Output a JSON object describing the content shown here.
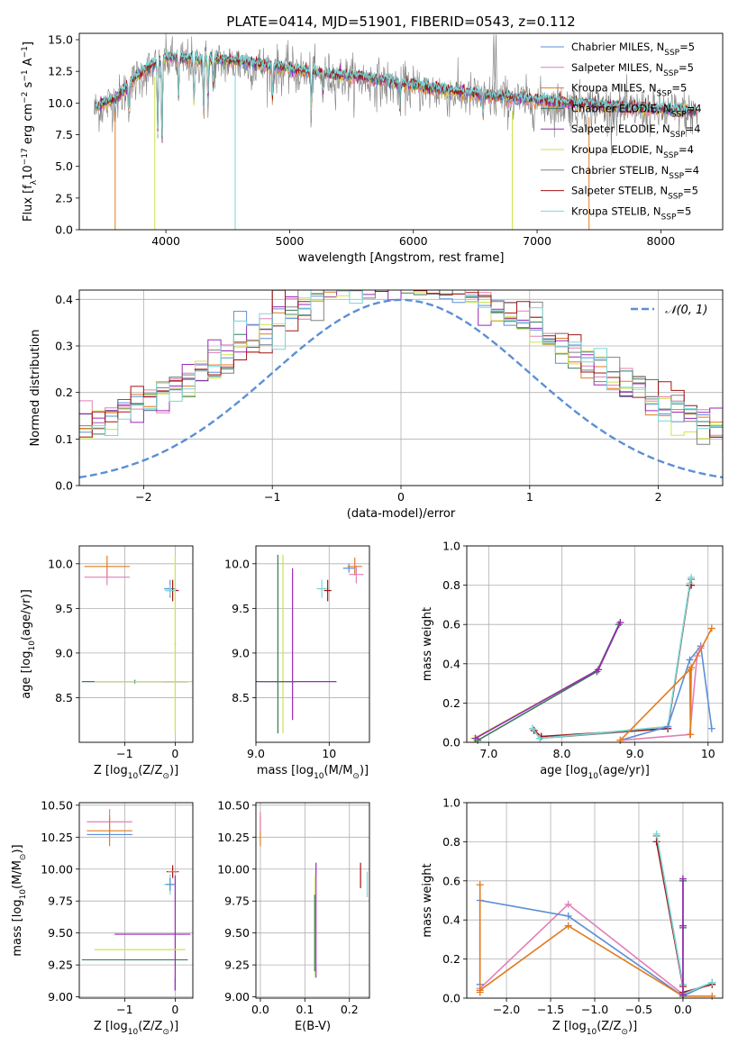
{
  "figure_title": "PLATE=0414, MJD=51901, FIBERID=0543, z=0.112",
  "colors": {
    "chabrier_miles": "#5b8fd6",
    "salpeter_miles": "#e37fb8",
    "kroupa_miles": "#e07b1f",
    "chabrier_elodie": "#3a7a5a",
    "salpeter_elodie": "#9a28b8",
    "kroupa_elodie": "#cfe24a",
    "chabrier_stelib": "#808080",
    "salpeter_stelib": "#a31414",
    "kroupa_stelib": "#78d7d7",
    "normal_curve": "#5b8fd6",
    "grid": "#b0b0b0"
  },
  "chart_data": [
    {
      "id": "spectrum",
      "type": "line",
      "xlabel": "wavelength [Angstrom, rest frame]",
      "ylabel_parts": [
        "Flux [f",
        "λ",
        "10",
        "−17",
        " erg cm",
        "−2",
        " s",
        "−1",
        " A",
        "−1",
        "]"
      ],
      "xlim": [
        3300,
        8500
      ],
      "ylim": [
        0,
        15.5
      ],
      "xticks": [
        4000,
        5000,
        6000,
        7000,
        8000
      ],
      "yticks": [
        0.0,
        2.5,
        5.0,
        7.5,
        10.0,
        12.5,
        15.0
      ],
      "grid": false,
      "legend_placement": "top-right",
      "legend": [
        {
          "label": "Chabrier MILES, N",
          "sub": "SSP",
          "tail": "=5",
          "color_key": "chabrier_miles"
        },
        {
          "label": "Salpeter MILES, N",
          "sub": "SSP",
          "tail": "=5",
          "color_key": "salpeter_miles"
        },
        {
          "label": "Kroupa MILES, N",
          "sub": "SSP",
          "tail": "=5",
          "color_key": "kroupa_miles"
        },
        {
          "label": "Chabrier ELODIE, N",
          "sub": "SSP",
          "tail": "=4",
          "color_key": "chabrier_elodie"
        },
        {
          "label": "Salpeter ELODIE, N",
          "sub": "SSP",
          "tail": "=4",
          "color_key": "salpeter_elodie"
        },
        {
          "label": "Kroupa ELODIE, N",
          "sub": "SSP",
          "tail": "=4",
          "color_key": "kroupa_elodie"
        },
        {
          "label": "Chabrier STELIB, N",
          "sub": "SSP",
          "tail": "=4",
          "color_key": "chabrier_stelib"
        },
        {
          "label": "Salpeter STELIB, N",
          "sub": "SSP",
          "tail": "=5",
          "color_key": "salpeter_stelib"
        },
        {
          "label": "Kroupa STELIB, N",
          "sub": "SSP",
          "tail": "=5",
          "color_key": "kroupa_stelib"
        }
      ],
      "continuum": {
        "x": [
          3420,
          3600,
          3800,
          4000,
          4200,
          4400,
          4600,
          4800,
          5000,
          5200,
          5400,
          5600,
          5800,
          6000,
          6200,
          6400,
          6600,
          6800,
          7000,
          7200,
          7400,
          7600,
          7800,
          8000,
          8200,
          8300
        ],
        "y": [
          9.6,
          10.4,
          12.4,
          13.6,
          13.5,
          13.4,
          13.3,
          13.0,
          12.7,
          12.4,
          12.2,
          12.0,
          11.7,
          11.4,
          11.1,
          10.8,
          10.6,
          10.4,
          10.2,
          10.0,
          9.9,
          9.7,
          9.6,
          9.5,
          9.4,
          9.3
        ]
      },
      "absorption_lines": [
        {
          "x": 3700,
          "depth": 1.8
        },
        {
          "x": 3934,
          "depth": 5.5
        },
        {
          "x": 3969,
          "depth": 6.5
        },
        {
          "x": 4102,
          "depth": 3.0
        },
        {
          "x": 4227,
          "depth": 3.5
        },
        {
          "x": 4305,
          "depth": 4.0
        },
        {
          "x": 4340,
          "depth": 3.0
        },
        {
          "x": 4383,
          "depth": 2.0
        },
        {
          "x": 4861,
          "depth": 2.5
        },
        {
          "x": 5175,
          "depth": 3.0
        },
        {
          "x": 5270,
          "depth": 1.5
        },
        {
          "x": 5890,
          "depth": 2.0
        },
        {
          "x": 6563,
          "depth": 1.5
        }
      ],
      "drop_lines": [
        {
          "x": 3590,
          "color_key": "kroupa_miles"
        },
        {
          "x": 3910,
          "color_key": "kroupa_elodie"
        },
        {
          "x": 4560,
          "color_key": "kroupa_stelib"
        },
        {
          "x": 6800,
          "color_key": "kroupa_elodie"
        },
        {
          "x": 7420,
          "color_key": "kroupa_miles"
        }
      ]
    },
    {
      "id": "residuals",
      "type": "step",
      "xlabel": "(data-model)/error",
      "ylabel": "Normed distribution",
      "xlim": [
        -2.5,
        2.5
      ],
      "ylim": [
        0,
        0.42
      ],
      "xticks": [
        -2,
        -1,
        0,
        1,
        2
      ],
      "xtick_labels": [
        "−2",
        "−1",
        "0",
        "1",
        "2"
      ],
      "yticks": [
        0.0,
        0.1,
        0.2,
        0.3,
        0.4
      ],
      "grid": true,
      "bin_width": 0.1,
      "legend_placement": "top-right",
      "legend_label": "𝒩(0, 1)",
      "normal": {
        "mu": 0,
        "sigma": 1
      }
    },
    {
      "id": "age-vs-Z",
      "type": "errorbar",
      "xlabel_parts": [
        "Z [log",
        "10",
        "(Z/Z",
        "⊙",
        ")]"
      ],
      "ylabel_parts": [
        "age  [log",
        "10",
        "(age/yr)]"
      ],
      "xlim": [
        -1.9,
        0.35
      ],
      "ylim": [
        8.0,
        10.2
      ],
      "xticks": [
        -1,
        0
      ],
      "xtick_labels": [
        "−1",
        "0"
      ],
      "yticks": [
        8.5,
        9.0,
        9.5,
        10.0
      ],
      "grid": true,
      "points": [
        {
          "x": -1.35,
          "y": 9.97,
          "xerr": 0.45,
          "yerr": 0.12,
          "color_key": "kroupa_miles"
        },
        {
          "x": -1.35,
          "y": 9.85,
          "xerr": 0.45,
          "yerr": 0.09,
          "color_key": "salpeter_miles"
        },
        {
          "x": -0.1,
          "y": 9.72,
          "xerr": 0.12,
          "yerr": 0.1,
          "color_key": "chabrier_miles"
        },
        {
          "x": -0.05,
          "y": 9.7,
          "xerr": 0.12,
          "yerr": 0.12,
          "color_key": "salpeter_stelib"
        },
        {
          "x": -0.1,
          "y": 9.7,
          "xerr": 0.1,
          "yerr": 0.06,
          "color_key": "kroupa_stelib"
        },
        {
          "x": -0.8,
          "y": 8.68,
          "xerr": 1.05,
          "yerr": 0.02,
          "color_key": "chabrier_elodie"
        },
        {
          "x": 0.0,
          "y": 8.68,
          "xerr": 0.25,
          "yerr": 0.0,
          "color_key": "salpeter_elodie"
        },
        {
          "x": 0.0,
          "y": 9.1,
          "xerr": 0.02,
          "yerr": 1.0,
          "color_key": "kroupa_elodie"
        },
        {
          "x": -0.6,
          "y": 8.68,
          "xerr": 1.0,
          "yerr": 0.0,
          "color_key": "kroupa_elodie"
        }
      ]
    },
    {
      "id": "age-vs-mass",
      "type": "errorbar",
      "xlabel_parts": [
        "mass [log",
        "10",
        "(M/M",
        "⊙",
        ")]"
      ],
      "xlim": [
        9.0,
        10.55
      ],
      "ylim": [
        8.0,
        10.2
      ],
      "xticks": [
        9,
        10
      ],
      "yticks": [
        8.5,
        9.0,
        9.5,
        10.0
      ],
      "grid": true,
      "points": [
        {
          "x": 9.3,
          "y": 9.1,
          "xerr": 0.0,
          "yerr": 1.0,
          "color_key": "chabrier_elodie"
        },
        {
          "x": 9.37,
          "y": 9.1,
          "xerr": 0.0,
          "yerr": 1.0,
          "color_key": "kroupa_elodie"
        },
        {
          "x": 9.5,
          "y": 9.1,
          "xerr": 0.0,
          "yerr": 0.85,
          "color_key": "salpeter_elodie"
        },
        {
          "x": 9.5,
          "y": 8.68,
          "xerr": 0.6,
          "yerr": 0.0,
          "color_key": "salpeter_elodie"
        },
        {
          "x": 9.3,
          "y": 8.68,
          "xerr": 0.25,
          "yerr": 0.0,
          "color_key": "chabrier_elodie"
        },
        {
          "x": 9.98,
          "y": 9.7,
          "xerr": 0.05,
          "yerr": 0.12,
          "color_key": "salpeter_stelib"
        },
        {
          "x": 9.9,
          "y": 9.72,
          "xerr": 0.07,
          "yerr": 0.1,
          "color_key": "kroupa_stelib"
        },
        {
          "x": 10.35,
          "y": 9.97,
          "xerr": 0.1,
          "yerr": 0.1,
          "color_key": "kroupa_miles"
        },
        {
          "x": 10.37,
          "y": 9.88,
          "xerr": 0.1,
          "yerr": 0.1,
          "color_key": "salpeter_miles"
        },
        {
          "x": 10.27,
          "y": 9.95,
          "xerr": 0.08,
          "yerr": 0.05,
          "color_key": "chabrier_miles"
        }
      ]
    },
    {
      "id": "weight-vs-age",
      "type": "line",
      "xlabel_parts": [
        "age  [log",
        "10",
        "(age/yr)]"
      ],
      "ylabel": "mass weight",
      "xlim": [
        6.7,
        10.2
      ],
      "ylim": [
        0,
        1.0
      ],
      "xticks": [
        7,
        8,
        9,
        10
      ],
      "yticks": [
        0.0,
        0.2,
        0.4,
        0.6,
        0.8,
        1.0
      ],
      "grid": true,
      "series": [
        {
          "color_key": "kroupa_elodie",
          "x": [
            6.8,
            8.5,
            8.8
          ],
          "y": [
            0.02,
            0.37,
            0.61
          ]
        },
        {
          "color_key": "chabrier_elodie",
          "x": [
            6.85,
            8.48,
            8.78
          ],
          "y": [
            0.01,
            0.36,
            0.6
          ]
        },
        {
          "color_key": "salpeter_elodie",
          "x": [
            6.82,
            8.5,
            8.8
          ],
          "y": [
            0.02,
            0.37,
            0.61
          ]
        },
        {
          "color_key": "chabrier_stelib",
          "x": [
            7.6,
            7.7,
            9.45,
            9.75,
            9.77
          ],
          "y": [
            0.07,
            0.02,
            0.07,
            0.8,
            0.83
          ]
        },
        {
          "color_key": "salpeter_stelib",
          "x": [
            7.62,
            7.72,
            9.45,
            9.75,
            9.77
          ],
          "y": [
            0.06,
            0.03,
            0.07,
            0.8,
            0.8
          ]
        },
        {
          "color_key": "kroupa_stelib",
          "x": [
            7.6,
            7.7,
            9.45,
            9.75,
            9.77
          ],
          "y": [
            0.07,
            0.02,
            0.08,
            0.81,
            0.84
          ]
        },
        {
          "color_key": "chabrier_miles",
          "x": [
            8.8,
            9.45,
            9.75,
            9.9,
            10.05
          ],
          "y": [
            0.01,
            0.08,
            0.42,
            0.49,
            0.07
          ]
        },
        {
          "color_key": "salpeter_miles",
          "x": [
            8.8,
            9.75,
            9.85,
            9.9
          ],
          "y": [
            0.01,
            0.04,
            0.44,
            0.48
          ]
        },
        {
          "color_key": "kroupa_miles",
          "x": [
            8.8,
            9.75,
            9.76,
            9.77,
            10.05
          ],
          "y": [
            0.01,
            0.37,
            0.04,
            0.38,
            0.58
          ]
        }
      ]
    },
    {
      "id": "mass-vs-Z",
      "type": "errorbar",
      "xlabel_parts": [
        "Z [log",
        "10",
        "(Z/Z",
        "⊙",
        ")]"
      ],
      "ylabel_parts": [
        "mass [log",
        "10",
        "(M/M",
        "⊙",
        ")]"
      ],
      "xlim": [
        -1.9,
        0.35
      ],
      "ylim": [
        8.99,
        10.52
      ],
      "xticks": [
        -1,
        0
      ],
      "xtick_labels": [
        "−1",
        "0"
      ],
      "yticks": [
        9.0,
        9.25,
        9.5,
        9.75,
        10.0,
        10.25,
        10.5
      ],
      "ytick_labels": [
        "9.00",
        "9.25",
        "9.50",
        "9.75",
        "10.00",
        "10.25",
        "10.50"
      ],
      "grid": true,
      "points": [
        {
          "x": -1.3,
          "y": 10.37,
          "xerr": 0.45,
          "yerr": 0.1,
          "color_key": "salpeter_miles"
        },
        {
          "x": -1.3,
          "y": 10.3,
          "xerr": 0.45,
          "yerr": 0.12,
          "color_key": "kroupa_miles"
        },
        {
          "x": -1.3,
          "y": 10.27,
          "xerr": 0.45,
          "yerr": 0.0,
          "color_key": "chabrier_miles"
        },
        {
          "x": -0.05,
          "y": 9.98,
          "xerr": 0.12,
          "yerr": 0.05,
          "color_key": "salpeter_stelib"
        },
        {
          "x": -0.05,
          "y": 9.98,
          "xerr": 0.1,
          "yerr": 0.0,
          "color_key": "kroupa_miles"
        },
        {
          "x": -0.1,
          "y": 9.88,
          "xerr": 0.12,
          "yerr": 0.08,
          "color_key": "kroupa_stelib"
        },
        {
          "x": -0.1,
          "y": 9.88,
          "xerr": 0.08,
          "yerr": 0.05,
          "color_key": "chabrier_miles"
        },
        {
          "x": 0.0,
          "y": 9.5,
          "xerr": 0.0,
          "yerr": 0.45,
          "color_key": "salpeter_elodie"
        },
        {
          "x": -0.45,
          "y": 9.49,
          "xerr": 0.75,
          "yerr": 0.0,
          "color_key": "salpeter_elodie"
        },
        {
          "x": -0.7,
          "y": 9.37,
          "xerr": 0.9,
          "yerr": 0.0,
          "color_key": "kroupa_elodie"
        },
        {
          "x": -0.8,
          "y": 9.29,
          "xerr": 1.05,
          "yerr": 0.0,
          "color_key": "chabrier_elodie"
        },
        {
          "x": 0.0,
          "y": 9.1,
          "xerr": 0.0,
          "yerr": 0.05,
          "color_key": "salpeter_elodie"
        }
      ]
    },
    {
      "id": "mass-vs-ebv",
      "type": "errorbar",
      "xlabel": "E(B-V)",
      "xlim": [
        -0.01,
        0.245
      ],
      "ylim": [
        8.99,
        10.52
      ],
      "xticks": [
        0.0,
        0.1,
        0.2
      ],
      "ytick_labels": [
        "9.00",
        "9.25",
        "9.50",
        "9.75",
        "10.00",
        "10.25",
        "10.50"
      ],
      "yticks": [
        9.0,
        9.25,
        9.5,
        9.75,
        10.0,
        10.25,
        10.5
      ],
      "grid": true,
      "points": [
        {
          "x": 0.0,
          "y": 10.3,
          "xerr": 0.0,
          "yerr": 0.12,
          "color_key": "kroupa_miles"
        },
        {
          "x": 0.0,
          "y": 10.37,
          "xerr": 0.0,
          "yerr": 0.08,
          "color_key": "salpeter_miles"
        },
        {
          "x": 0.125,
          "y": 9.6,
          "xerr": 0.0,
          "yerr": 0.45,
          "color_key": "salpeter_elodie"
        },
        {
          "x": 0.123,
          "y": 9.55,
          "xerr": 0.0,
          "yerr": 0.4,
          "color_key": "kroupa_elodie"
        },
        {
          "x": 0.122,
          "y": 9.5,
          "xerr": 0.0,
          "yerr": 0.3,
          "color_key": "chabrier_elodie"
        },
        {
          "x": 0.225,
          "y": 9.95,
          "xerr": 0.0,
          "yerr": 0.1,
          "color_key": "salpeter_stelib"
        },
        {
          "x": 0.24,
          "y": 9.88,
          "xerr": 0.0,
          "yerr": 0.1,
          "color_key": "kroupa_stelib"
        }
      ]
    },
    {
      "id": "weight-vs-Z",
      "type": "line",
      "xlabel_parts": [
        "Z [log",
        "10",
        "(Z/Z",
        "⊙",
        ")]"
      ],
      "ylabel": "mass weight",
      "xlim": [
        -2.45,
        0.45
      ],
      "ylim": [
        0,
        1.0
      ],
      "xticks": [
        -2.0,
        -1.5,
        -1.0,
        -0.5,
        0.0
      ],
      "xtick_labels": [
        "−2.0",
        "−1.5",
        "−1.0",
        "−0.5",
        "0.0"
      ],
      "yticks": [
        0.0,
        0.2,
        0.4,
        0.6,
        0.8,
        1.0
      ],
      "grid": true,
      "series": [
        {
          "color_key": "salpeter_miles",
          "x": [
            -2.3,
            -1.3,
            0.0,
            0.0
          ],
          "y": [
            0.05,
            0.48,
            0.02,
            0.01
          ]
        },
        {
          "color_key": "chabrier_miles",
          "x": [
            -2.3,
            -2.3,
            -1.3,
            0.0,
            0.33
          ],
          "y": [
            0.07,
            0.5,
            0.42,
            0.01,
            0.08
          ]
        },
        {
          "color_key": "kroupa_miles",
          "x": [
            -2.3,
            -2.3,
            -2.3,
            -1.3,
            0.0,
            0.33
          ],
          "y": [
            0.58,
            0.03,
            0.04,
            0.37,
            0.01,
            0.01
          ]
        },
        {
          "color_key": "chabrier_stelib",
          "x": [
            -0.3,
            0.0,
            0.0,
            0.33
          ],
          "y": [
            0.83,
            0.07,
            0.02,
            0.08
          ]
        },
        {
          "color_key": "salpeter_stelib",
          "x": [
            -0.3,
            0.0,
            0.0,
            0.33
          ],
          "y": [
            0.8,
            0.06,
            0.03,
            0.07
          ]
        },
        {
          "color_key": "kroupa_stelib",
          "x": [
            -0.3,
            0.0,
            0.0,
            0.33
          ],
          "y": [
            0.84,
            0.07,
            0.02,
            0.08
          ]
        },
        {
          "color_key": "kroupa_elodie",
          "x": [
            0.0,
            0.0,
            0.0
          ],
          "y": [
            0.61,
            0.36,
            0.02
          ]
        },
        {
          "color_key": "chabrier_elodie",
          "x": [
            0.0,
            0.0,
            0.0
          ],
          "y": [
            0.6,
            0.36,
            0.01
          ]
        },
        {
          "color_key": "salpeter_elodie",
          "x": [
            0.0,
            0.0,
            0.0
          ],
          "y": [
            0.61,
            0.37,
            0.02
          ]
        }
      ]
    }
  ]
}
